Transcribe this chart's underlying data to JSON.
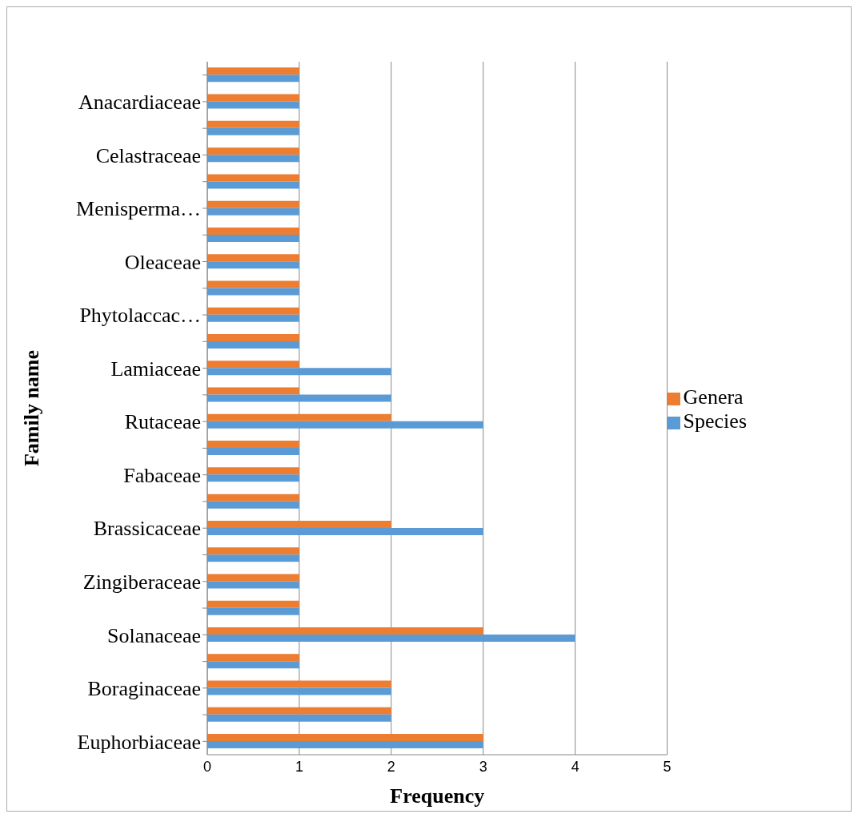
{
  "chart_data": {
    "type": "bar",
    "orientation": "horizontal",
    "xlabel": "Frequency",
    "ylabel": "Family name",
    "categories": [
      null,
      "Anacardiaceae",
      null,
      "Celastraceae",
      null,
      "Menisperma…",
      null,
      "Oleaceae",
      null,
      "Phytolaccac…",
      null,
      "Lamiaceae",
      null,
      "Rutaceae",
      null,
      "Fabaceae",
      null,
      "Brassicaceae",
      null,
      "Zingiberaceae",
      null,
      "Solanaceae",
      null,
      "Boraginaceae",
      null,
      "Euphorbiaceae"
    ],
    "series": [
      {
        "name": "Genera",
        "color": "#ed7d31",
        "values": [
          1,
          1,
          1,
          1,
          1,
          1,
          1,
          1,
          1,
          1,
          1,
          1,
          1,
          2,
          1,
          1,
          1,
          2,
          1,
          1,
          1,
          3,
          1,
          2,
          2,
          3
        ]
      },
      {
        "name": "Species",
        "color": "#5b9bd5",
        "values": [
          1,
          1,
          1,
          1,
          1,
          1,
          1,
          1,
          1,
          1,
          1,
          2,
          2,
          3,
          1,
          1,
          1,
          3,
          1,
          1,
          1,
          4,
          1,
          2,
          2,
          3
        ]
      }
    ],
    "xlim": [
      0,
      5
    ],
    "xticks": [
      0,
      1,
      2,
      3,
      4,
      5
    ],
    "grid": "x",
    "legend": "right"
  }
}
